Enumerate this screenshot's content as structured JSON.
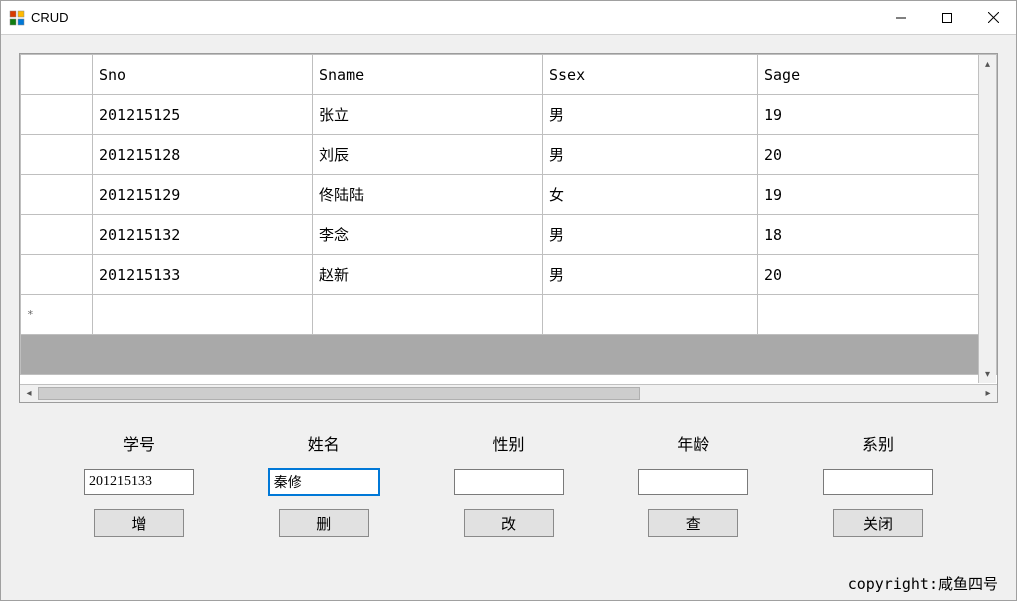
{
  "window": {
    "title": "CRUD"
  },
  "grid": {
    "columns": [
      "Sno",
      "Sname",
      "Ssex",
      "Sage"
    ],
    "rows": [
      {
        "sno": "201215125",
        "sname": "张立",
        "ssex": "男",
        "sage": "19"
      },
      {
        "sno": "201215128",
        "sname": "刘辰",
        "ssex": "男",
        "sage": "20"
      },
      {
        "sno": "201215129",
        "sname": "佟陆陆",
        "ssex": "女",
        "sage": "19"
      },
      {
        "sno": "201215132",
        "sname": "李念",
        "ssex": "男",
        "sage": "18"
      },
      {
        "sno": "201215133",
        "sname": "赵新",
        "ssex": "男",
        "sage": "20"
      }
    ],
    "newrow_marker": "*"
  },
  "form": {
    "fields": [
      {
        "key": "sno",
        "label": "学号",
        "value": "201215133",
        "button": "增",
        "focused": false
      },
      {
        "key": "sname",
        "label": "姓名",
        "value": "秦修",
        "button": "删",
        "focused": true
      },
      {
        "key": "ssex",
        "label": "性别",
        "value": "",
        "button": "改",
        "focused": false
      },
      {
        "key": "sage",
        "label": "年龄",
        "value": "",
        "button": "查",
        "focused": false
      },
      {
        "key": "sdept",
        "label": "系别",
        "value": "",
        "button": "关闭",
        "focused": false
      }
    ]
  },
  "footer": {
    "copyright": "copyright:咸鱼四号"
  }
}
